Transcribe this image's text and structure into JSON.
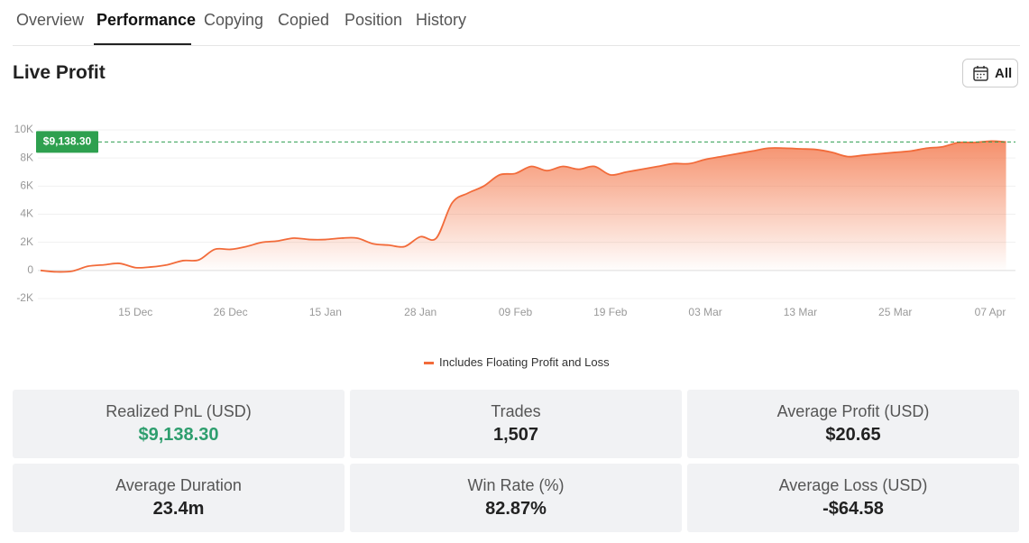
{
  "tabs": {
    "items": [
      "Overview",
      "Performance",
      "Copying",
      "Copied",
      "Position",
      "History"
    ],
    "active": 1
  },
  "section": {
    "title": "Live Profit",
    "filter": "All"
  },
  "chart": {
    "type": "line",
    "color": "#f26b3a",
    "x": [
      null,
      null,
      null,
      null,
      null,
      null,
      "15 Dec",
      null,
      null,
      null,
      null,
      null,
      "26 Dec",
      null,
      null,
      null,
      null,
      null,
      "15 Jan",
      null,
      null,
      null,
      null,
      null,
      "28 Jan",
      null,
      null,
      null,
      null,
      null,
      "09 Feb",
      null,
      null,
      null,
      null,
      null,
      "19 Feb",
      null,
      null,
      null,
      null,
      null,
      "03 Mar",
      null,
      null,
      null,
      null,
      null,
      "13 Mar",
      null,
      null,
      null,
      null,
      null,
      "25 Mar",
      null,
      null,
      null,
      null,
      null,
      "07 Apr",
      null
    ],
    "values": [
      0,
      -100,
      -50,
      300,
      400,
      500,
      200,
      250,
      400,
      700,
      750,
      1500,
      1500,
      1700,
      2000,
      2100,
      2300,
      2200,
      2200,
      2300,
      2300,
      1900,
      1800,
      1700,
      2400,
      2300,
      4800,
      5500,
      6000,
      6800,
      6900,
      7400,
      7100,
      7400,
      7200,
      7400,
      6800,
      7000,
      7200,
      7400,
      7600,
      7600,
      7900,
      8100,
      8300,
      8500,
      8700,
      8700,
      8650,
      8600,
      8400,
      8100,
      8200,
      8300,
      8400,
      8500,
      8700,
      8800,
      9100,
      9100,
      9200,
      9138.3
    ],
    "ylim": [
      -2000,
      10000
    ],
    "yticks": [
      {
        "value": 10000,
        "label": "10K"
      },
      {
        "value": 8000,
        "label": "8K"
      },
      {
        "value": 6000,
        "label": "6K"
      },
      {
        "value": 4000,
        "label": "4K"
      },
      {
        "value": 2000,
        "label": "2K"
      },
      0,
      {
        "value": -2000,
        "label": "-2K"
      }
    ],
    "grid": true,
    "current": {
      "value": 9138.3,
      "label": "$9,138.30"
    },
    "legend": "Includes Floating Profit and Loss"
  },
  "stats": [
    {
      "label": "Realized PnL (USD)",
      "value": "$9,138.30",
      "color": "#2e9e6e"
    },
    {
      "label": "Trades",
      "value": "1,507"
    },
    {
      "label": "Average Profit (USD)",
      "value": "$20.65"
    },
    {
      "label": "Average Duration",
      "value": "23.4m"
    },
    {
      "label": "Win Rate (%)",
      "value": "82.87%"
    },
    {
      "label": "Average Loss (USD)",
      "value": "-$64.58"
    }
  ]
}
